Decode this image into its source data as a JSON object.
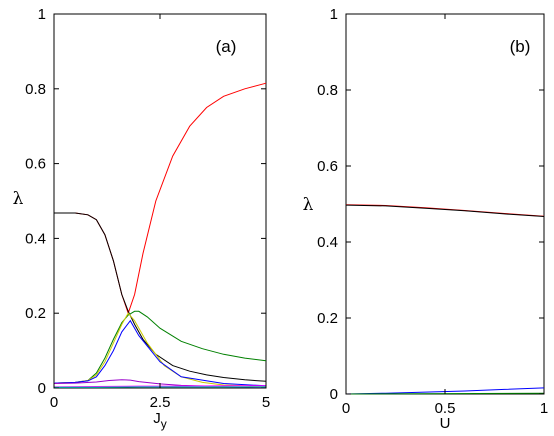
{
  "chart_data": [
    {
      "type": "line",
      "panel_label": "(a)",
      "xlabel": "J",
      "xlabel_sub": "y",
      "ylabel": "λ",
      "xlim": [
        0,
        5
      ],
      "ylim": [
        0,
        1
      ],
      "xticks": [
        "0",
        "2.5",
        "5"
      ],
      "xtick_values": [
        0,
        2.5,
        5
      ],
      "yticks": [
        "0",
        "0.2",
        "0.4",
        "0.6",
        "0.8",
        "1"
      ],
      "ytick_values": [
        0,
        0.2,
        0.4,
        0.6,
        0.8,
        1
      ],
      "series": [
        {
          "color": "#ff0000",
          "x": [
            0,
            0.5,
            0.8,
            1.0,
            1.2,
            1.4,
            1.6,
            1.75,
            1.9,
            2.1,
            2.4,
            2.8,
            3.2,
            3.6,
            4.0,
            4.5,
            5.0
          ],
          "y": [
            0.468,
            0.468,
            0.463,
            0.45,
            0.41,
            0.34,
            0.25,
            0.2,
            0.25,
            0.36,
            0.5,
            0.62,
            0.7,
            0.75,
            0.78,
            0.8,
            0.815
          ]
        },
        {
          "color": "#000000",
          "x": [
            0,
            0.5,
            0.8,
            1.0,
            1.2,
            1.4,
            1.6,
            1.75,
            1.9,
            2.1,
            2.4,
            2.8,
            3.2,
            3.6,
            4.0,
            4.5,
            5.0
          ],
          "y": [
            0.468,
            0.468,
            0.463,
            0.45,
            0.41,
            0.34,
            0.25,
            0.205,
            0.17,
            0.13,
            0.09,
            0.06,
            0.045,
            0.035,
            0.028,
            0.022,
            0.018
          ]
        },
        {
          "color": "#008000",
          "x": [
            0,
            0.5,
            0.8,
            1.0,
            1.2,
            1.4,
            1.6,
            1.75,
            1.9,
            2.0,
            2.2,
            2.5,
            3.0,
            3.5,
            4.0,
            4.5,
            5.0
          ],
          "y": [
            0.013,
            0.015,
            0.02,
            0.04,
            0.08,
            0.13,
            0.175,
            0.195,
            0.205,
            0.205,
            0.19,
            0.16,
            0.125,
            0.105,
            0.09,
            0.08,
            0.073
          ]
        },
        {
          "color": "#cccc00",
          "x": [
            0,
            0.5,
            0.8,
            1.0,
            1.2,
            1.4,
            1.6,
            1.75,
            1.9,
            2.2,
            2.6,
            3.0,
            3.5,
            4.0,
            5.0
          ],
          "y": [
            0.013,
            0.015,
            0.02,
            0.035,
            0.07,
            0.12,
            0.17,
            0.2,
            0.18,
            0.12,
            0.06,
            0.03,
            0.015,
            0.008,
            0.004
          ]
        },
        {
          "color": "#0000ff",
          "x": [
            0,
            0.5,
            0.8,
            1.0,
            1.2,
            1.4,
            1.6,
            1.8,
            2.0,
            2.5,
            3.0,
            4.0,
            5.0
          ],
          "y": [
            0.013,
            0.015,
            0.019,
            0.03,
            0.06,
            0.1,
            0.15,
            0.18,
            0.14,
            0.07,
            0.03,
            0.012,
            0.006
          ]
        },
        {
          "color": "#9900cc",
          "x": [
            0,
            0.5,
            1.0,
            1.3,
            1.6,
            1.8,
            2.0,
            2.5,
            3.0,
            4.0,
            5.0
          ],
          "y": [
            0.012,
            0.013,
            0.016,
            0.02,
            0.022,
            0.021,
            0.017,
            0.011,
            0.007,
            0.004,
            0.002
          ]
        },
        {
          "color": "#ff00ff",
          "x": [
            0,
            1.0,
            2.0,
            3.0,
            4.0,
            5.0
          ],
          "y": [
            0.003,
            0.004,
            0.005,
            0.005,
            0.006,
            0.006
          ]
        },
        {
          "color": "#00cccc",
          "x": [
            0,
            1.0,
            2.0,
            3.0,
            4.0,
            5.0
          ],
          "y": [
            0.002,
            0.002,
            0.003,
            0.003,
            0.003,
            0.003
          ]
        }
      ]
    },
    {
      "type": "line",
      "panel_label": "(b)",
      "xlabel": "U",
      "ylabel": "λ",
      "xlim": [
        0,
        1
      ],
      "ylim": [
        0,
        1
      ],
      "xticks": [
        "0",
        "0.5",
        "1"
      ],
      "xtick_values": [
        0,
        0.5,
        1
      ],
      "yticks": [
        "0",
        "0.2",
        "0.4",
        "0.6",
        "0.8",
        "1"
      ],
      "ytick_values": [
        0,
        0.2,
        0.4,
        0.6,
        0.8,
        1
      ],
      "series": [
        {
          "color": "#ff0000",
          "x": [
            0,
            0.2,
            0.4,
            0.6,
            0.8,
            1.0
          ],
          "y": [
            0.498,
            0.496,
            0.49,
            0.483,
            0.475,
            0.468
          ]
        },
        {
          "color": "#000000",
          "x": [
            0,
            0.2,
            0.4,
            0.6,
            0.8,
            1.0
          ],
          "y": [
            0.497,
            0.495,
            0.489,
            0.482,
            0.474,
            0.467
          ]
        },
        {
          "color": "#0000ff",
          "x": [
            0,
            0.2,
            0.4,
            0.6,
            0.8,
            1.0
          ],
          "y": [
            0.0,
            0.002,
            0.005,
            0.008,
            0.012,
            0.016
          ]
        },
        {
          "color": "#008000",
          "x": [
            0,
            0.5,
            1.0
          ],
          "y": [
            0.0,
            0.001,
            0.002
          ]
        }
      ]
    }
  ]
}
